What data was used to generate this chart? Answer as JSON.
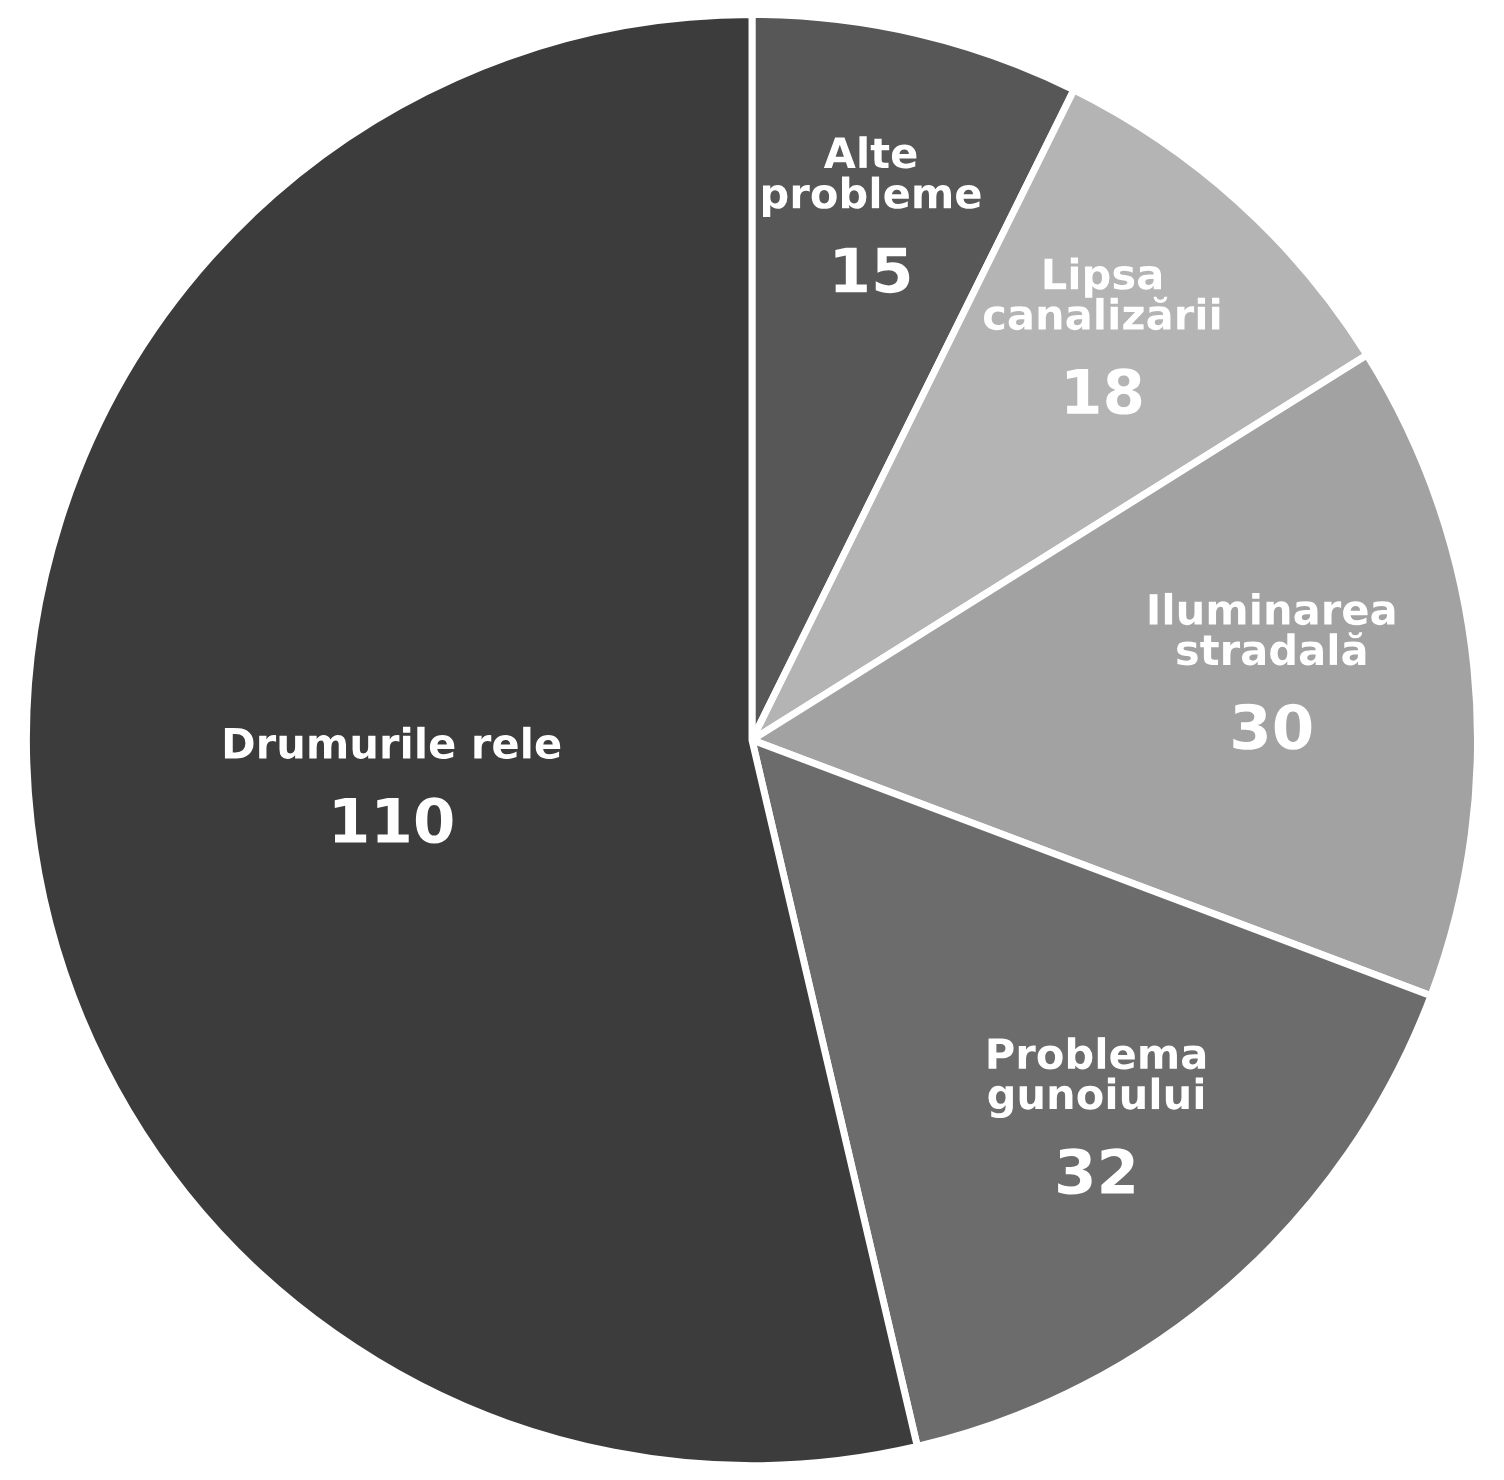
{
  "chart_data": {
    "type": "pie",
    "categories": [
      "Alte\nprobleme",
      "Lipsa\ncanalizării",
      "Iluminarea\nstradală",
      "Problema\ngunoiului",
      "Drumurile rele"
    ],
    "values": [
      15,
      18,
      30,
      32,
      110
    ],
    "colors": [
      "#575757",
      "#b4b4b4",
      "#a2a2a2",
      "#6c6c6c",
      "#3c3c3c"
    ],
    "data_labels": true
  }
}
